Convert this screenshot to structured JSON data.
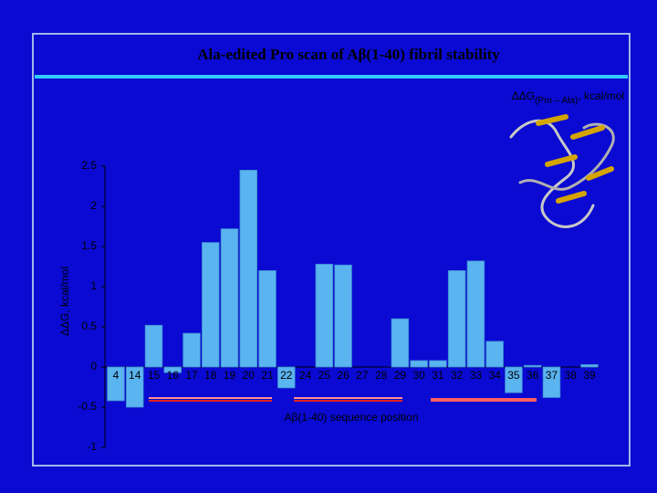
{
  "chart_data": {
    "type": "bar",
    "title": "Ala-edited Pro scan of Aβ(1-40) fibril stability",
    "annotation": "ΔΔG",
    "annotation_sub": "(Pro – Ala)",
    "annotation_suffix": ", kcal/mol",
    "y_label": "ΔΔG, kcal/mol",
    "x_label": "Aβ(1-40) sequence position",
    "categories": [
      "4",
      "14",
      "15",
      "16",
      "17",
      "18",
      "19",
      "20",
      "21",
      "22",
      "24",
      "25",
      "26",
      "27",
      "28",
      "29",
      "30",
      "31",
      "32",
      "33",
      "34",
      "35",
      "36",
      "37",
      "38",
      "39"
    ],
    "values": [
      -0.42,
      -0.5,
      0.52,
      -0.07,
      0.42,
      1.55,
      1.72,
      2.45,
      1.2,
      -0.26,
      0,
      1.28,
      1.27,
      0,
      0,
      0.6,
      0.08,
      0.08,
      1.2,
      1.32,
      0.32,
      -0.32,
      0.02,
      -0.38,
      0,
      0.03
    ],
    "color": "#5ab4f0",
    "ylim": [
      -1,
      2.5
    ],
    "yticks": [
      2.5,
      2,
      1.5,
      1,
      0.5,
      0,
      -0.5,
      -1
    ]
  }
}
